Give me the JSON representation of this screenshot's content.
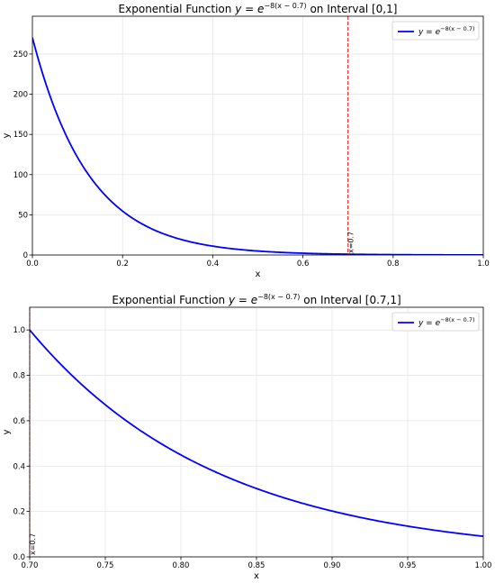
{
  "chart_data": [
    {
      "type": "line",
      "title_prefix": "Exponential Function ",
      "title_math": "y = e",
      "title_exponent": "−8(x − 0.7)",
      "title_suffix": " on Interval [0,1]",
      "xlabel": "x",
      "ylabel": "y",
      "xlim": [
        0,
        1
      ],
      "ylim": [
        0,
        297
      ],
      "xticks": [
        0.0,
        0.2,
        0.4,
        0.6,
        0.8,
        1.0
      ],
      "xtick_labels": [
        "0.0",
        "0.2",
        "0.4",
        "0.6",
        "0.8",
        "1.0"
      ],
      "yticks": [
        0,
        50,
        100,
        150,
        200,
        250
      ],
      "ytick_labels": [
        "0",
        "50",
        "100",
        "150",
        "200",
        "250"
      ],
      "grid": true,
      "legend_position": "top-right",
      "series": [
        {
          "name_math": "y = e",
          "name_exponent": "−8(x − 0.7)",
          "color": "#0000ff",
          "function": "exp(-8*(x-0.7))",
          "x": [
            0.0,
            0.05,
            0.1,
            0.15,
            0.2,
            0.25,
            0.3,
            0.35,
            0.4,
            0.45,
            0.5,
            0.55,
            0.6,
            0.65,
            0.7,
            0.75,
            0.8,
            0.85,
            0.9,
            0.95,
            1.0
          ],
          "y": [
            270.4,
            181.3,
            121.5,
            81.5,
            54.6,
            36.6,
            24.5,
            16.4,
            11.0,
            7.39,
            4.95,
            3.32,
            2.23,
            1.49,
            1.0,
            0.67,
            0.45,
            0.3,
            0.2,
            0.135,
            0.091
          ]
        }
      ],
      "vline": {
        "x": 0.7,
        "color": "#ff0000",
        "label": "x=0.7"
      }
    },
    {
      "type": "line",
      "title_prefix": "Exponential Function ",
      "title_math": "y = e",
      "title_exponent": "−8(x − 0.7)",
      "title_suffix": " on Interval [0.7,1]",
      "xlabel": "x",
      "ylabel": "y",
      "xlim": [
        0.7,
        1.0
      ],
      "ylim": [
        0,
        1.1
      ],
      "xticks": [
        0.7,
        0.75,
        0.8,
        0.85,
        0.9,
        0.95,
        1.0
      ],
      "xtick_labels": [
        "0.70",
        "0.75",
        "0.80",
        "0.85",
        "0.90",
        "0.95",
        "1.00"
      ],
      "yticks": [
        0.0,
        0.2,
        0.4,
        0.6,
        0.8,
        1.0
      ],
      "ytick_labels": [
        "0.0",
        "0.2",
        "0.4",
        "0.6",
        "0.8",
        "1.0"
      ],
      "grid": true,
      "legend_position": "top-right",
      "series": [
        {
          "name_math": "y = e",
          "name_exponent": "−8(x − 0.7)",
          "color": "#0000ff",
          "function": "exp(-8*(x-0.7))",
          "x": [
            0.7,
            0.725,
            0.75,
            0.775,
            0.8,
            0.825,
            0.85,
            0.875,
            0.9,
            0.925,
            0.95,
            0.975,
            1.0
          ],
          "y": [
            1.0,
            0.819,
            0.67,
            0.549,
            0.449,
            0.368,
            0.301,
            0.247,
            0.202,
            0.165,
            0.135,
            0.111,
            0.091
          ]
        }
      ],
      "vline": {
        "x": 0.7,
        "color": "#ff0000",
        "label": "x=0.7"
      }
    }
  ]
}
